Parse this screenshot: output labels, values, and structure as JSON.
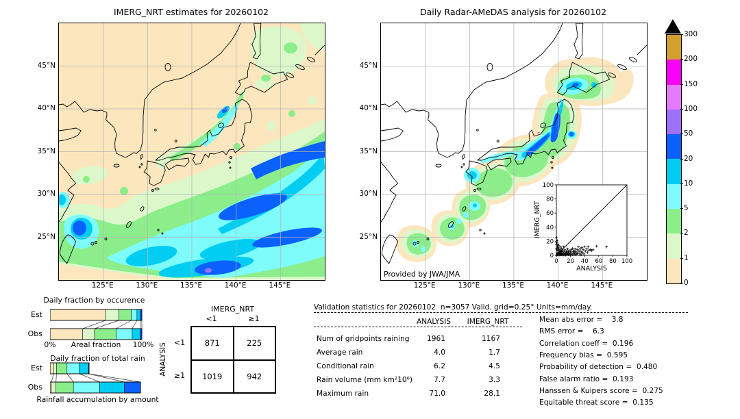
{
  "colors": {
    "levels_bottom_to_top": [
      "#fbe6bd",
      "#dcf8cb",
      "#8bee8b",
      "#7efcfc",
      "#00cdf1",
      "#0b61fe",
      "#9e71fb",
      "#e47bfb",
      "#fb00fb",
      "#d2a02f"
    ],
    "overflow": "#000000",
    "grid": "#b4b4b4",
    "coast": "#000000"
  },
  "chart_data": [
    {
      "id": "imerg_map",
      "type": "heatmap",
      "title": "IMERG_NRT estimates for 20260102",
      "lon_ticks": [
        "125°E",
        "130°E",
        "135°E",
        "140°E",
        "145°E"
      ],
      "lat_ticks": [
        "45°N",
        "40°N",
        "35°N",
        "30°N",
        "25°N"
      ],
      "units": "mm/day"
    },
    {
      "id": "radar_map",
      "type": "heatmap",
      "title": "Daily Radar-AMeDAS analysis for 20260102",
      "credit": "Provided by JWA/JMA",
      "lon_ticks": [
        "125°E",
        "130°E",
        "135°E",
        "140°E",
        "145°E"
      ],
      "lat_ticks": [
        "45°N",
        "40°N",
        "35°N",
        "30°N",
        "25°N"
      ],
      "units": "mm/day"
    },
    {
      "id": "colorbar",
      "type": "colorbar",
      "tick_labels": [
        "300",
        "200",
        "150",
        "100",
        "50",
        "20",
        "10",
        "5",
        "2",
        "1",
        "0"
      ],
      "levels": [
        0,
        1,
        2,
        5,
        10,
        20,
        50,
        100,
        150,
        200,
        300
      ],
      "colors_bottom_to_top": [
        "#fbe6bd",
        "#dcf8cb",
        "#8bee8b",
        "#7efcfc",
        "#00cdf1",
        "#0b61fe",
        "#9e71fb",
        "#e47bfb",
        "#fb00fb",
        "#d2a02f"
      ]
    },
    {
      "id": "occurrence",
      "type": "bar",
      "title": "Daily fraction by occurence",
      "categories": [
        "Est",
        "Obs"
      ],
      "x_left": "0%",
      "x_center": "Areal fraction",
      "x_right": "100%",
      "class_colors": [
        "#fbe6bd",
        "#dcf8cb",
        "#8bee8b",
        "#7efcfc",
        "#00cdf1",
        "#0b61fe"
      ],
      "series": [
        {
          "name": "Est",
          "values": [
            60.5,
            14.5,
            13.5,
            6.2,
            3.5,
            1.8
          ]
        },
        {
          "name": "Obs",
          "values": [
            35.5,
            13.0,
            23.5,
            17.5,
            8.5,
            2.0
          ]
        }
      ]
    },
    {
      "id": "total_rain",
      "type": "bar",
      "title": "Daily fraction of total rain",
      "categories": [
        "Est",
        "Obs"
      ],
      "xlabel": "Rainfall accumulation by amount",
      "class_colors": [
        "#fbe6bd",
        "#dcf8cb",
        "#8bee8b",
        "#7efcfc",
        "#00cdf1",
        "#0b61fe"
      ],
      "series": [
        {
          "name": "Est",
          "values": [
            4.0,
            3.0,
            11.5,
            13.5,
            10.0,
            0.5
          ]
        },
        {
          "name": "Obs",
          "values": [
            1.5,
            5.0,
            19.0,
            28.5,
            27.0,
            17.5
          ]
        }
      ]
    },
    {
      "id": "contingency",
      "type": "table",
      "col_title": "IMERG_NRT",
      "row_title": "ANALYSIS",
      "col_labels": [
        "<1",
        "≥1"
      ],
      "row_labels": [
        "<1",
        "≥1"
      ],
      "values": [
        [
          "871",
          "225"
        ],
        [
          "1019",
          "942"
        ]
      ]
    },
    {
      "id": "validation_stats",
      "type": "table",
      "title": "Validation statistics for 20260102  n=3057 Valid. grid=0.25° Units=mm/day.",
      "columns": [
        "ANALYSIS",
        "IMERG_NRT"
      ],
      "rows": [
        {
          "label": "Num of gridpoints raining",
          "analysis": "1961",
          "imerg": "1167"
        },
        {
          "label": "Average rain",
          "analysis": "4.0",
          "imerg": "1.7"
        },
        {
          "label": "Conditional rain",
          "analysis": "6.2",
          "imerg": "4.5"
        },
        {
          "label": "Rain volume (mm km²10⁶)",
          "analysis": "7.7",
          "imerg": "3.3"
        },
        {
          "label": "Maximum rain",
          "analysis": "71.0",
          "imerg": "28.1"
        }
      ]
    },
    {
      "id": "skill_scores",
      "type": "table",
      "items": [
        {
          "label": "Mean abs error",
          "value": "3.8",
          "text": "Mean abs error =    3.8"
        },
        {
          "label": "RMS error",
          "value": "6.3",
          "text": "RMS error =    6.3"
        },
        {
          "label": "Correlation coeff",
          "value": "0.196",
          "text": "Correlation coeff =  0.196"
        },
        {
          "label": "Frequency bias",
          "value": "0.595",
          "text": "Frequency bias =  0.595"
        },
        {
          "label": "Probability of detection",
          "value": "0.480",
          "text": "Probability of detection =  0.480"
        },
        {
          "label": "False alarm ratio",
          "value": "0.193",
          "text": "False alarm ratio =  0.193"
        },
        {
          "label": "Hanssen & Kuipers score",
          "value": "0.275",
          "text": "Hanssen & Kuipers score =  0.275"
        },
        {
          "label": "Equitable threat score",
          "value": "0.135",
          "text": "Equitable threat score =  0.135"
        }
      ]
    },
    {
      "id": "analysis_vs_imerg",
      "type": "scatter",
      "xlabel": "ANALYSIS",
      "ylabel": "IMERG_NRT",
      "xlim": [
        0,
        100
      ],
      "ylim": [
        0,
        100
      ],
      "x_tick_labels": [
        "0",
        "20",
        "40",
        "60",
        "80",
        "100"
      ],
      "y_tick_labels": [
        "100",
        "80",
        "60",
        "40",
        "20",
        "0"
      ],
      "diagonal": true,
      "points": [
        [
          0.5,
          0.5
        ],
        [
          1,
          2
        ],
        [
          1.5,
          0.8
        ],
        [
          2,
          1
        ],
        [
          2,
          4
        ],
        [
          2.5,
          7
        ],
        [
          3,
          1.5
        ],
        [
          3,
          3
        ],
        [
          3.5,
          9
        ],
        [
          4,
          0.5
        ],
        [
          4,
          2
        ],
        [
          4,
          5
        ],
        [
          5,
          1
        ],
        [
          5,
          3
        ],
        [
          5,
          8
        ],
        [
          5.5,
          12
        ],
        [
          6,
          0.8
        ],
        [
          6,
          2.5
        ],
        [
          6,
          6
        ],
        [
          7,
          1
        ],
        [
          7,
          4
        ],
        [
          7,
          10
        ],
        [
          8,
          2
        ],
        [
          8,
          5
        ],
        [
          8,
          0.5
        ],
        [
          9,
          1.5
        ],
        [
          9,
          7
        ],
        [
          10,
          3
        ],
        [
          10,
          0.8
        ],
        [
          10,
          12
        ],
        [
          11,
          2
        ],
        [
          11,
          5
        ],
        [
          12,
          1
        ],
        [
          12,
          8
        ],
        [
          13,
          3
        ],
        [
          13,
          0.5
        ],
        [
          14,
          6
        ],
        [
          14,
          2
        ],
        [
          15,
          1
        ],
        [
          15,
          4
        ],
        [
          16,
          9
        ],
        [
          16,
          2
        ],
        [
          17,
          5
        ],
        [
          17,
          1
        ],
        [
          18,
          3
        ],
        [
          18,
          7
        ],
        [
          19,
          2
        ],
        [
          20,
          5
        ],
        [
          20,
          1
        ],
        [
          21,
          8
        ],
        [
          22,
          3
        ],
        [
          23,
          10
        ],
        [
          23,
          1
        ],
        [
          24,
          5
        ],
        [
          25,
          2
        ],
        [
          25,
          7
        ],
        [
          26,
          4
        ],
        [
          27,
          1
        ],
        [
          27,
          9
        ],
        [
          28,
          5
        ],
        [
          29,
          2
        ],
        [
          30,
          8
        ],
        [
          30,
          3
        ],
        [
          31,
          12
        ],
        [
          32,
          6
        ],
        [
          33,
          2
        ],
        [
          34,
          9
        ],
        [
          35,
          5
        ],
        [
          35,
          1
        ],
        [
          36,
          11
        ],
        [
          37,
          4
        ],
        [
          38,
          8
        ],
        [
          39,
          2
        ],
        [
          40,
          12
        ],
        [
          41,
          6
        ],
        [
          43,
          9
        ],
        [
          44,
          4
        ],
        [
          45,
          12
        ],
        [
          46,
          7
        ],
        [
          48,
          8
        ],
        [
          50,
          7
        ],
        [
          52,
          8
        ],
        [
          57,
          13
        ],
        [
          71,
          12
        ],
        [
          0.3,
          15
        ],
        [
          0.8,
          18
        ],
        [
          1.2,
          21
        ],
        [
          0.5,
          25
        ],
        [
          1.5,
          13
        ],
        [
          2,
          16
        ],
        [
          0.2,
          10
        ],
        [
          1,
          8
        ],
        [
          2.5,
          11
        ],
        [
          3,
          14
        ]
      ]
    }
  ]
}
